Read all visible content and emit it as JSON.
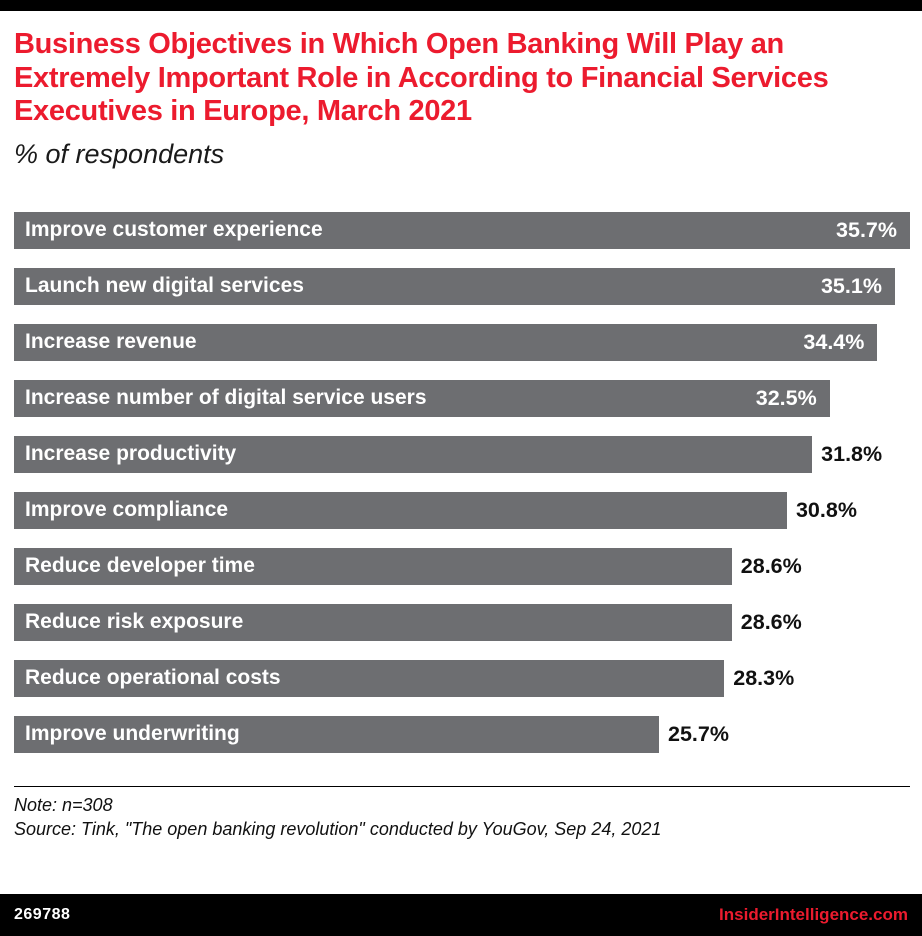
{
  "meta": {
    "accent_red": "#ec1b2e",
    "bar_gray": "#6d6e71",
    "band_black": "#000000"
  },
  "header": {
    "title": "Business Objectives in Which Open Banking Will Play an Extremely Important Role in According to Financial Services Executives in Europe, March 2021",
    "subtitle": "% of respondents"
  },
  "chart_data": {
    "type": "bar",
    "orientation": "horizontal",
    "title": "Business Objectives in Which Open Banking Will Play an Extremely Important Role in According to Financial Services Executives in Europe, March 2021",
    "xlabel": "% of respondents",
    "ylabel": "",
    "xlim": [
      0,
      35.7
    ],
    "grid": false,
    "legend": "none",
    "bar_color": "#6d6e71",
    "categories": [
      "Improve customer experience",
      "Launch new digital services",
      "Increase revenue",
      "Increase number of digital service users",
      "Increase productivity",
      "Improve compliance",
      "Reduce developer time",
      "Reduce risk exposure",
      "Reduce operational costs",
      "Improve underwriting"
    ],
    "values": [
      35.7,
      35.1,
      34.4,
      32.5,
      31.8,
      30.8,
      28.6,
      28.6,
      28.3,
      25.7
    ],
    "bars": [
      {
        "label": "Improve customer experience",
        "value": 35.7,
        "display": "35.7%",
        "value_inside": true
      },
      {
        "label": "Launch new digital services",
        "value": 35.1,
        "display": "35.1%",
        "value_inside": true
      },
      {
        "label": "Increase revenue",
        "value": 34.4,
        "display": "34.4%",
        "value_inside": true
      },
      {
        "label": "Increase number of digital service users",
        "value": 32.5,
        "display": "32.5%",
        "value_inside": true
      },
      {
        "label": "Increase productivity",
        "value": 31.8,
        "display": "31.8%",
        "value_inside": false
      },
      {
        "label": "Improve compliance",
        "value": 30.8,
        "display": "30.8%",
        "value_inside": false
      },
      {
        "label": "Reduce developer time",
        "value": 28.6,
        "display": "28.6%",
        "value_inside": false
      },
      {
        "label": "Reduce risk exposure",
        "value": 28.6,
        "display": "28.6%",
        "value_inside": false
      },
      {
        "label": "Reduce operational costs",
        "value": 28.3,
        "display": "28.3%",
        "value_inside": false
      },
      {
        "label": "Improve underwriting",
        "value": 25.7,
        "display": "25.7%",
        "value_inside": false
      }
    ]
  },
  "footer": {
    "note": "Note: n=308",
    "source": "Source: Tink, \"The open banking revolution\" conducted by YouGov, Sep 24, 2021",
    "chart_id": "269788",
    "brand": "InsiderIntelligence.com"
  }
}
